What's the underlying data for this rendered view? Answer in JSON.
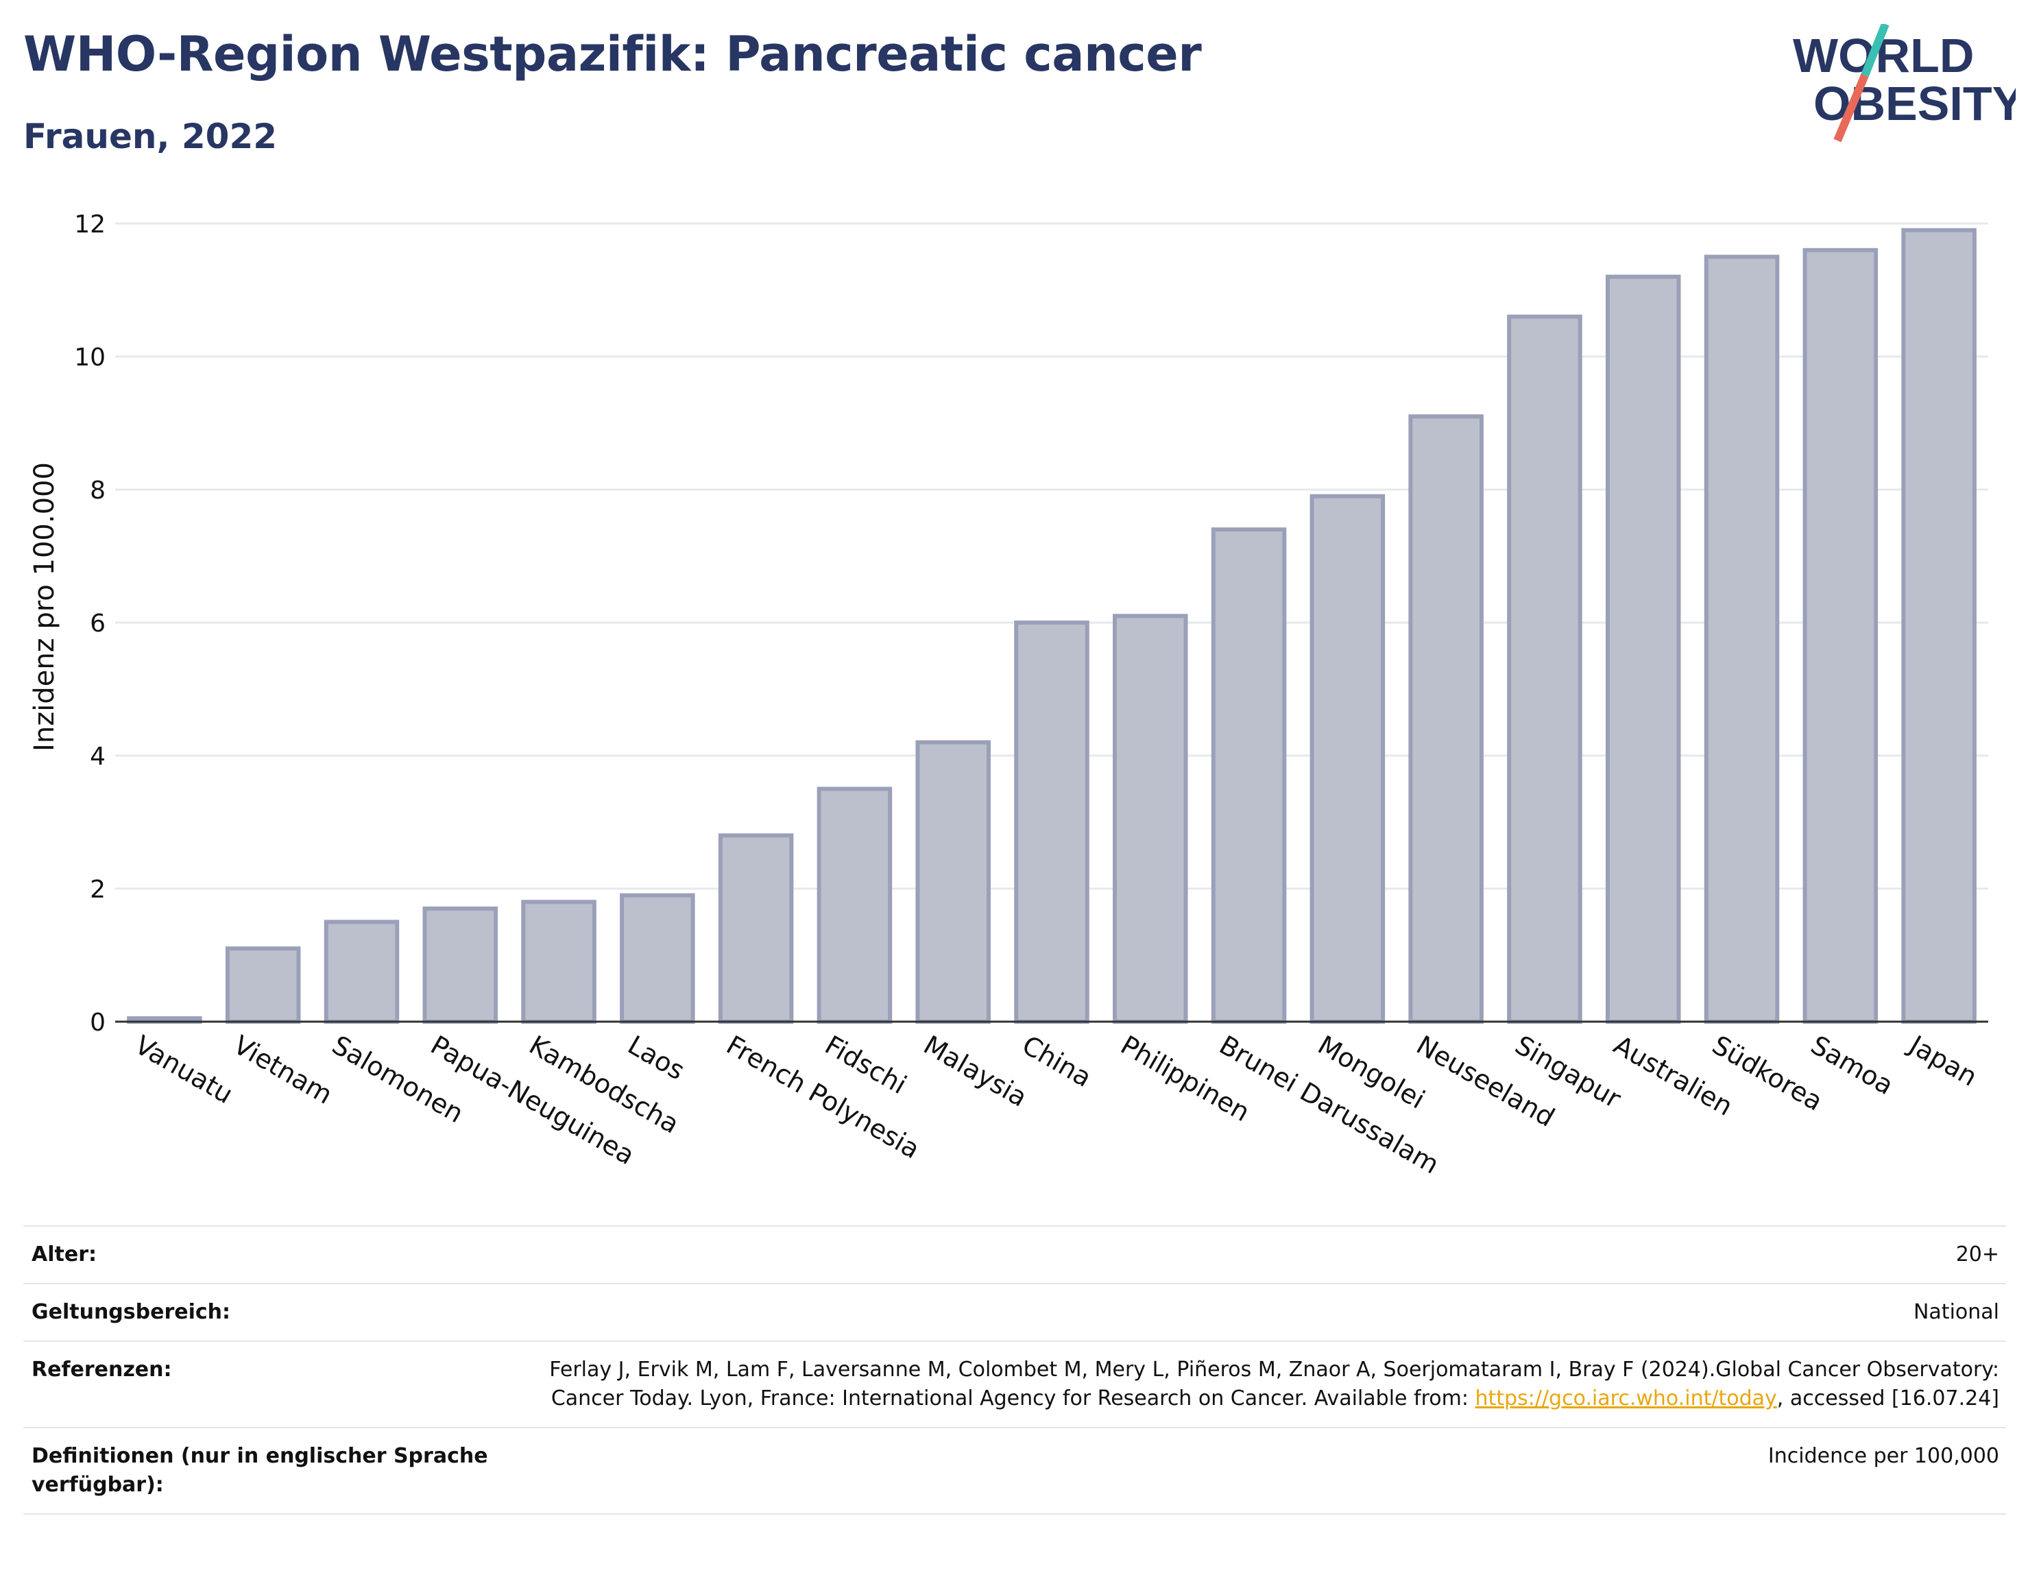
{
  "header": {
    "title": "WHO-Region Westpazifik: Pancreatic cancer",
    "subtitle": "Frauen, 2022"
  },
  "logo": {
    "line1": "WORLD",
    "line2": "OBESITY",
    "colors": {
      "text": "#283663",
      "slash_teal": "#3bbfb3",
      "slash_coral": "#e8695a"
    }
  },
  "chart_data": {
    "type": "bar",
    "title": "",
    "xlabel": "",
    "ylabel": "Inzidenz pro 100.000",
    "categories": [
      "Vanuatu",
      "Vietnam",
      "Salomonen",
      "Papua-Neuguinea",
      "Kambodscha",
      "Laos",
      "French Polynesia",
      "Fidschi",
      "Malaysia",
      "China",
      "Philippinen",
      "Brunei Darussalam",
      "Mongolei",
      "Neuseeland",
      "Singapur",
      "Australien",
      "Südkorea",
      "Samoa",
      "Japan"
    ],
    "values": [
      0.05,
      1.1,
      1.5,
      1.7,
      1.8,
      1.9,
      2.8,
      3.5,
      4.2,
      6.0,
      6.1,
      7.4,
      7.9,
      9.1,
      10.6,
      11.2,
      11.5,
      11.6,
      11.9
    ],
    "ylim": [
      0,
      12
    ],
    "yticks": [
      0,
      2,
      4,
      6,
      8,
      10,
      12
    ],
    "grid": true,
    "colors": {
      "bar_fill": "#bcc0cd",
      "bar_stroke": "#9aa0b8",
      "grid": "#e6e8ec",
      "axis": "#333333"
    }
  },
  "meta": {
    "rows": [
      {
        "label": "Alter:",
        "value": "20+"
      },
      {
        "label": "Geltungsbereich:",
        "value": "National"
      },
      {
        "label": "Referenzen:",
        "value_before": "Ferlay J, Ervik M, Lam F, Laversanne M, Colombet M, Mery L, Piñeros M, Znaor A, Soerjomataram I, Bray F (2024).Global Cancer Observatory: Cancer Today. Lyon, France: International Agency for Research on Cancer. Available from: ",
        "link": "https://gco.iarc.who.int/today",
        "value_after": ", accessed [16.07.24]"
      },
      {
        "label": "Definitionen (nur in englischer Sprache verfügbar):",
        "value": "Incidence per 100,000"
      }
    ]
  }
}
